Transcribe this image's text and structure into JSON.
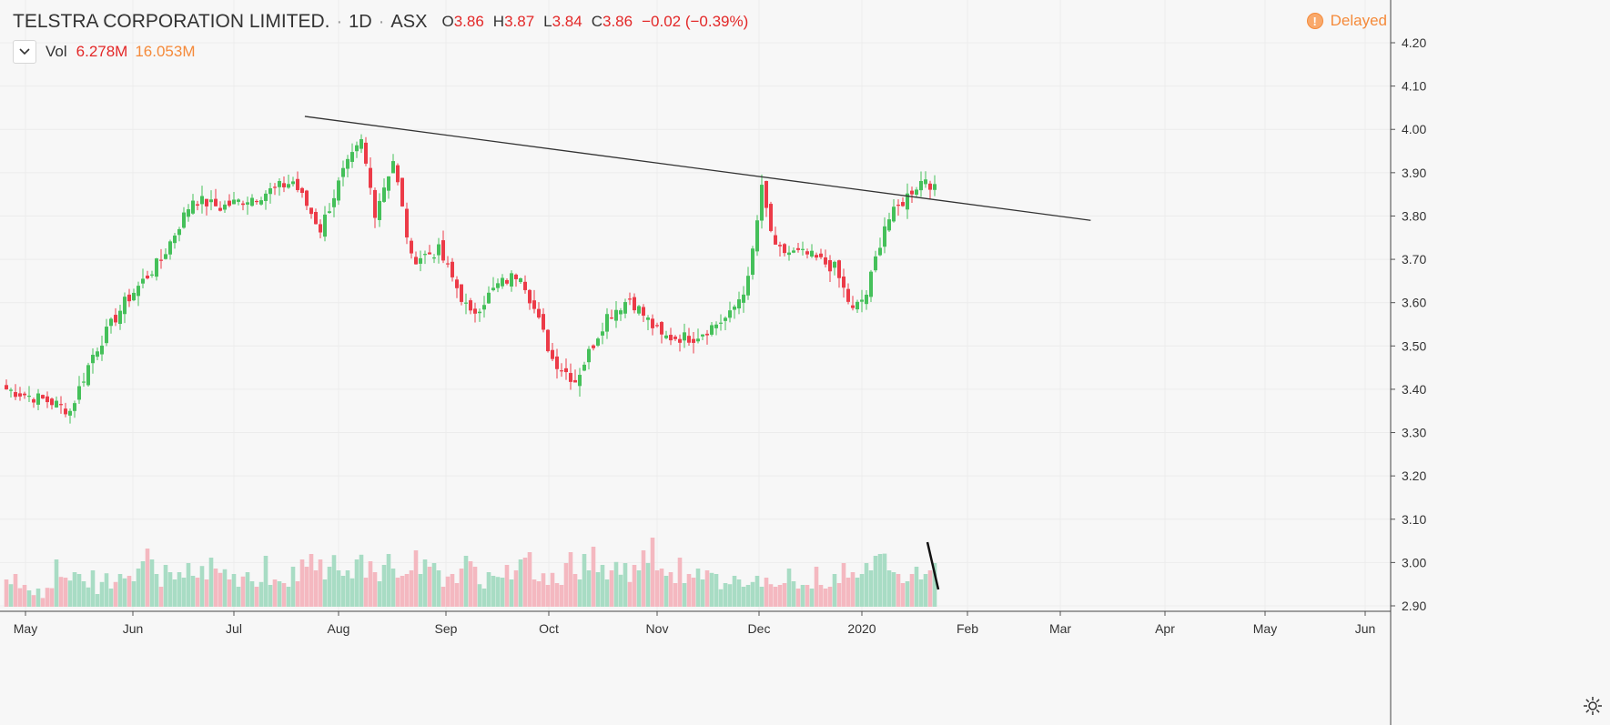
{
  "header": {
    "symbol": "TELSTRA CORPORATION LIMITED.",
    "interval": "1D",
    "exchange": "ASX",
    "open_label": "O",
    "open": "3.86",
    "high_label": "H",
    "high": "3.87",
    "low_label": "L",
    "low": "3.84",
    "close_label": "C",
    "close": "3.86",
    "change": "−0.02 (−0.39%)",
    "separator": "·"
  },
  "volume_legend": {
    "label": "Vol",
    "value": "6.278M",
    "ma_value": "16.053M"
  },
  "status": {
    "delayed_label": "Delayed",
    "icon": "exclamation-icon"
  },
  "colors": {
    "up": "#45c05a",
    "down": "#ec3b48",
    "vol_up": "#a8dcc4",
    "vol_down": "#f4b8c0",
    "line": "#333333",
    "accent": "#f58a3a",
    "change": "#e32828"
  },
  "chart_data": {
    "type": "candlestick",
    "y_axis": {
      "min": 2.9,
      "max": 4.2,
      "ticks": [
        "4.20",
        "4.10",
        "4.00",
        "3.90",
        "3.80",
        "3.70",
        "3.60",
        "3.50",
        "3.40",
        "3.30",
        "3.20",
        "3.10",
        "3.00",
        "2.90"
      ]
    },
    "x_axis": {
      "ticks": [
        "May",
        "Jun",
        "Jul",
        "Aug",
        "Sep",
        "Oct",
        "Nov",
        "Dec",
        "2020",
        "Feb",
        "Mar",
        "Apr",
        "May",
        "Jun"
      ]
    },
    "price_path": [
      {
        "t": 0,
        "p": 3.4
      },
      {
        "t": 10,
        "p": 3.37
      },
      {
        "t": 14,
        "p": 3.35
      },
      {
        "t": 19,
        "p": 3.48
      },
      {
        "t": 26,
        "p": 3.6
      },
      {
        "t": 34,
        "p": 3.7
      },
      {
        "t": 41,
        "p": 3.84
      },
      {
        "t": 47,
        "p": 3.82
      },
      {
        "t": 56,
        "p": 3.85
      },
      {
        "t": 63,
        "p": 3.88
      },
      {
        "t": 69,
        "p": 3.77
      },
      {
        "t": 74,
        "p": 3.9
      },
      {
        "t": 78,
        "p": 3.97
      },
      {
        "t": 81,
        "p": 3.81
      },
      {
        "t": 85,
        "p": 3.93
      },
      {
        "t": 89,
        "p": 3.7
      },
      {
        "t": 95,
        "p": 3.72
      },
      {
        "t": 102,
        "p": 3.57
      },
      {
        "t": 108,
        "p": 3.64
      },
      {
        "t": 113,
        "p": 3.67
      },
      {
        "t": 120,
        "p": 3.47
      },
      {
        "t": 125,
        "p": 3.42
      },
      {
        "t": 132,
        "p": 3.57
      },
      {
        "t": 137,
        "p": 3.61
      },
      {
        "t": 144,
        "p": 3.52
      },
      {
        "t": 151,
        "p": 3.52
      },
      {
        "t": 159,
        "p": 3.57
      },
      {
        "t": 163,
        "p": 3.65
      },
      {
        "t": 166,
        "p": 3.86
      },
      {
        "t": 169,
        "p": 3.72
      },
      {
        "t": 176,
        "p": 3.71
      },
      {
        "t": 182,
        "p": 3.68
      },
      {
        "t": 186,
        "p": 3.58
      },
      {
        "t": 189,
        "p": 3.62
      },
      {
        "t": 193,
        "p": 3.78
      },
      {
        "t": 199,
        "p": 3.86
      },
      {
        "t": 202,
        "p": 3.89
      },
      {
        "t": 204,
        "p": 3.86
      }
    ],
    "trendline": {
      "start": {
        "date": "Jul 22, 2019",
        "price": 4.03
      },
      "end": {
        "date": "Mar 10, 2020",
        "price": 3.79
      }
    },
    "volume_scale_max": 27,
    "volume": [
      7.5,
      6.2,
      9.0,
      5.1,
      6.0,
      4.5,
      3.2,
      5.0,
      2.4,
      5.2,
      5.1,
      13.0,
      8.2,
      8.0,
      7.2,
      9.5,
      9.0,
      7.0,
      5.3,
      10.0,
      3.5,
      6.8,
      9.2,
      5.0,
      6.8,
      9.0,
      7.8,
      8.5,
      7.0,
      10.5,
      12.5,
      16.0,
      13.0,
      9.0,
      5.5,
      11.5,
      9.5,
      7.5,
      9.5,
      8.0,
      12.0,
      8.5,
      8.0,
      11.2,
      7.5,
      13.5,
      10.5,
      9.3,
      10.3,
      7.5,
      9.0,
      5.5,
      8.3,
      9.5,
      7.0,
      5.5,
      6.8,
      14.0,
      6.0,
      7.5,
      7.0,
      6.5,
      5.5,
      11.0,
      7.0,
      13.0,
      11.0,
      14.5,
      10.0,
      13.0,
      7.5,
      11.0,
      14.2,
      10.0,
      8.5,
      10.0,
      7.8,
      13.0,
      14.3,
      8.0,
      12.5,
      9.5,
      7.0,
      11.5,
      14.5,
      10.5,
      8.0,
      8.5,
      9.0,
      10.0,
      15.5,
      9.0,
      13.0,
      11.0,
      12.0,
      10.0,
      5.5,
      8.3,
      9.0,
      6.5,
      10.5,
      14.0,
      12.5,
      11.0,
      6.2,
      5.0,
      9.5,
      8.5,
      8.2,
      8.0,
      11.5,
      7.5,
      10.0,
      13.0,
      13.5,
      15.0,
      7.5,
      7.0,
      9.2,
      6.0,
      9.3,
      6.5,
      6.0,
      12.0,
      15.0,
      9.0,
      7.5,
      14.5,
      10.0,
      16.5,
      9.5,
      11.5,
      7.5,
      10.0,
      12.3,
      8.8,
      12.0,
      6.8,
      11.5,
      10.0,
      15.5,
      12.0,
      19.0,
      10.0,
      10.5,
      8.5,
      9.5,
      6.5,
      13.5,
      6.5,
      9.0,
      8.0,
      10.5,
      7.5,
      10.0,
      9.3,
      9.0,
      4.8,
      6.5,
      6.2,
      8.5,
      7.5,
      5.5,
      6.0,
      6.8,
      8.5,
      5.5,
      8.0,
      6.2,
      5.5,
      6.0,
      6.5,
      10.5,
      7.0,
      5.0,
      6.0,
      6.0,
      5.0,
      11.0,
      6.0,
      5.0,
      5.5,
      9.0,
      6.5,
      12.0,
      8.0,
      9.5,
      8.0,
      9.0,
      12.0,
      10.0,
      14.0,
      14.5,
      14.6,
      10.0,
      9.5,
      9.0,
      6.5,
      7.0,
      9.0,
      11.0,
      7.5,
      9.0,
      10.0,
      12.0,
      11.0,
      3.0,
      2.0,
      2.5,
      4.0,
      5.5,
      7.0,
      6.5,
      7.5,
      8.0,
      8.5,
      7.0,
      8.2,
      5.0,
      6.5,
      8.5,
      9.5,
      12.0,
      8.0,
      3.0
    ]
  }
}
